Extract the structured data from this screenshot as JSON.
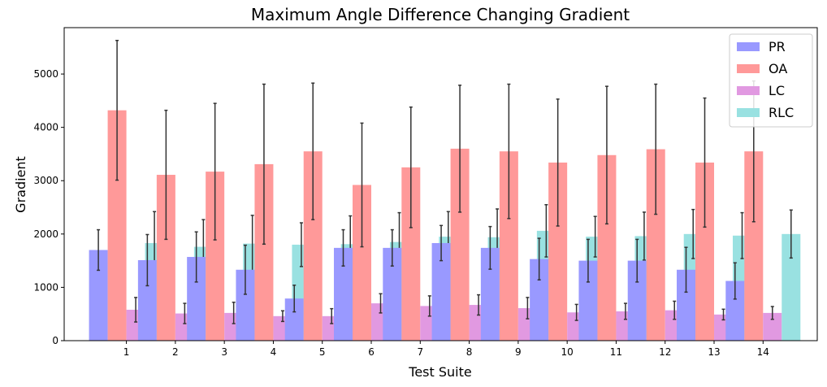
{
  "chart_data": {
    "type": "bar",
    "title": "Maximum Angle Difference Changing Gradient",
    "xlabel": "Test Suite",
    "ylabel": "Gradient",
    "categories": [
      "1",
      "2",
      "3",
      "4",
      "5",
      "6",
      "7",
      "8",
      "9",
      "10",
      "11",
      "12",
      "13",
      "14"
    ],
    "ylim": [
      0,
      5870
    ],
    "yticks": [
      0,
      1000,
      2000,
      3000,
      4000,
      5000
    ],
    "grid": false,
    "legend_position": "top-right",
    "error_bar_color": "#333333",
    "series": [
      {
        "name": "PR",
        "color": "#9999ff",
        "values": [
          1700,
          1510,
          1570,
          1330,
          790,
          1740,
          1740,
          1830,
          1740,
          1530,
          1500,
          1500,
          1330,
          1120
        ],
        "errors": [
          380,
          480,
          470,
          460,
          250,
          340,
          340,
          330,
          400,
          390,
          400,
          400,
          420,
          340
        ]
      },
      {
        "name": "OA",
        "color": "#ff9999",
        "values": [
          4320,
          3110,
          3170,
          3310,
          3550,
          2920,
          3250,
          3600,
          3550,
          3340,
          3480,
          3590,
          3340,
          3550
        ],
        "errors": [
          1310,
          1210,
          1280,
          1500,
          1280,
          1160,
          1130,
          1190,
          1260,
          1190,
          1290,
          1220,
          1210,
          1320
        ]
      },
      {
        "name": "LC",
        "color": "#e199e1",
        "values": [
          580,
          510,
          520,
          460,
          460,
          700,
          650,
          670,
          610,
          530,
          550,
          570,
          490,
          520
        ],
        "errors": [
          230,
          190,
          200,
          100,
          140,
          180,
          190,
          190,
          200,
          150,
          150,
          170,
          100,
          120
        ]
      },
      {
        "name": "RLC",
        "color": "#99e1e1",
        "values": [
          1830,
          1760,
          1820,
          1800,
          1810,
          1850,
          1950,
          1940,
          2060,
          1950,
          1960,
          2000,
          1970,
          2000
        ],
        "errors": [
          590,
          510,
          530,
          410,
          530,
          550,
          470,
          530,
          490,
          380,
          450,
          460,
          430,
          450
        ]
      }
    ]
  }
}
